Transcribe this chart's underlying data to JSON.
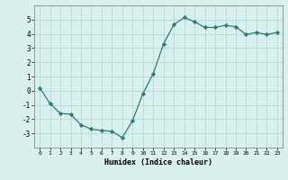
{
  "x": [
    0,
    1,
    2,
    3,
    4,
    5,
    6,
    7,
    8,
    9,
    10,
    11,
    12,
    13,
    14,
    15,
    16,
    17,
    18,
    19,
    20,
    21,
    22,
    23
  ],
  "y": [
    0.2,
    -0.9,
    -1.6,
    -1.65,
    -2.4,
    -2.7,
    -2.8,
    -2.85,
    -3.3,
    -2.1,
    -0.2,
    1.2,
    3.3,
    4.65,
    5.15,
    4.85,
    4.45,
    4.45,
    4.6,
    4.5,
    3.95,
    4.1,
    3.95,
    4.1
  ],
  "line_color": "#2e7d6e",
  "marker_color": "#2e7d6e",
  "bg_color": "#d8f0ee",
  "grid_color": "#b8d8d4",
  "xlabel": "Humidex (Indice chaleur)",
  "xlim": [
    -0.5,
    23.5
  ],
  "ylim": [
    -4,
    6
  ],
  "yticks": [
    -3,
    -2,
    -1,
    0,
    1,
    2,
    3,
    4,
    5
  ],
  "xticks": [
    0,
    1,
    2,
    3,
    4,
    5,
    6,
    7,
    8,
    9,
    10,
    11,
    12,
    13,
    14,
    15,
    16,
    17,
    18,
    19,
    20,
    21,
    22,
    23
  ]
}
